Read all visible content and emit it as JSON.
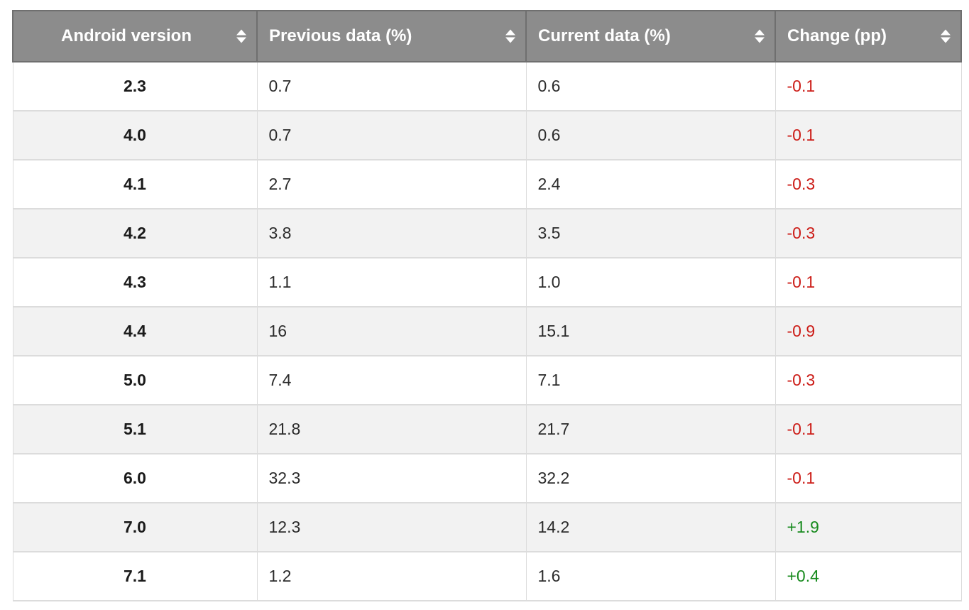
{
  "table": {
    "columns": [
      {
        "label": "Android version"
      },
      {
        "label": "Previous data (%)"
      },
      {
        "label": "Current data (%)"
      },
      {
        "label": "Change (pp)"
      }
    ],
    "rows": [
      {
        "version": "2.3",
        "previous": "0.7",
        "current": "0.6",
        "change": "-0.1"
      },
      {
        "version": "4.0",
        "previous": "0.7",
        "current": "0.6",
        "change": "-0.1"
      },
      {
        "version": "4.1",
        "previous": "2.7",
        "current": "2.4",
        "change": "-0.3"
      },
      {
        "version": "4.2",
        "previous": "3.8",
        "current": "3.5",
        "change": "-0.3"
      },
      {
        "version": "4.3",
        "previous": "1.1",
        "current": "1.0",
        "change": "-0.1"
      },
      {
        "version": "4.4",
        "previous": "16",
        "current": "15.1",
        "change": "-0.9"
      },
      {
        "version": "5.0",
        "previous": "7.4",
        "current": "7.1",
        "change": "-0.3"
      },
      {
        "version": "5.1",
        "previous": "21.8",
        "current": "21.7",
        "change": "-0.1"
      },
      {
        "version": "6.0",
        "previous": "32.3",
        "current": "32.2",
        "change": "-0.1"
      },
      {
        "version": "7.0",
        "previous": "12.3",
        "current": "14.2",
        "change": "+1.9"
      },
      {
        "version": "7.1",
        "previous": "1.2",
        "current": "1.6",
        "change": "+0.4"
      }
    ]
  },
  "colors": {
    "header_bg": "#8c8c8c",
    "header_border": "#6f6f6f",
    "row_alt_bg": "#f2f2f2",
    "cell_border": "#dcdcdc",
    "negative": "#cc1c17",
    "positive": "#178a1d"
  }
}
